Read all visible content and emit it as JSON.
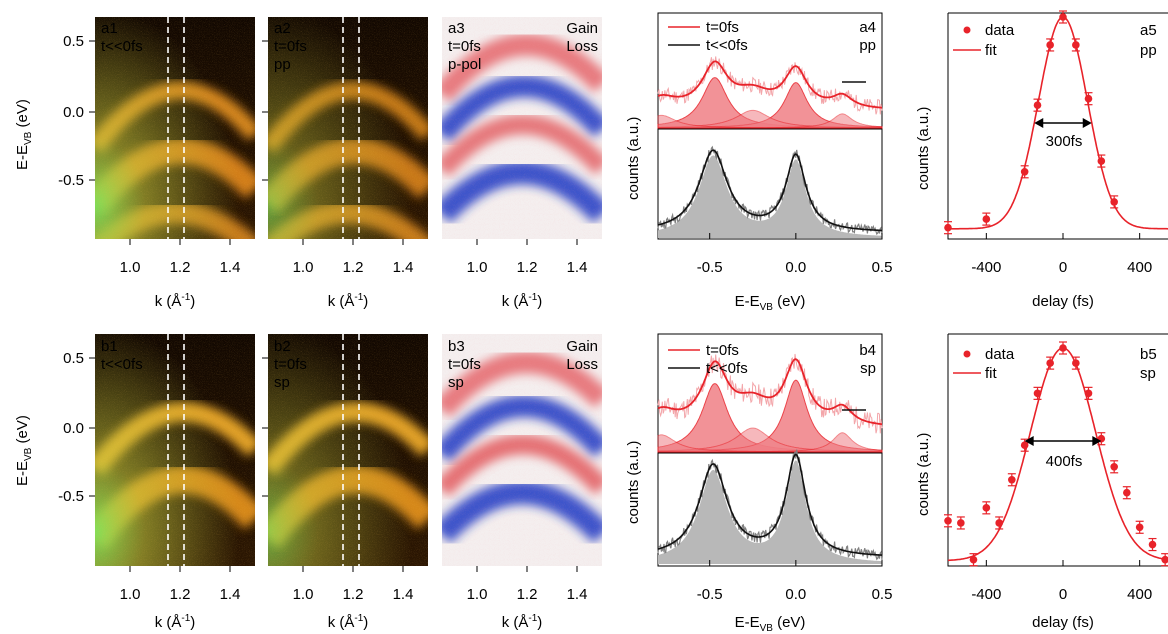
{
  "colors": {
    "red": "#e8232a",
    "black": "#111111",
    "blue": "#1530c8",
    "fillred": "#f07f86",
    "fillgray": "#b8b8b8"
  },
  "arpes_axes": {
    "ylabel": "E-E",
    "ylabel_sub": "VB",
    "ylabel_unit": " (eV)",
    "yticks": [
      "0.5",
      "0.0",
      "-0.5"
    ],
    "xticks": [
      "1.0",
      "1.2",
      "1.4"
    ],
    "xlabel": "k (Å",
    "xlabel_sup": "-1",
    "xlabel_end": ")"
  },
  "panels": {
    "a1": {
      "lines": [
        "a1",
        "t<<0fs"
      ]
    },
    "a2": {
      "lines": [
        "a2",
        "t=0fs",
        "pp"
      ]
    },
    "a3": {
      "lines": [
        "a3",
        "t=0fs",
        "p-pol"
      ],
      "gain": "Gain",
      "loss": "Loss"
    },
    "b1": {
      "lines": [
        "b1",
        "t<<0fs"
      ]
    },
    "b2": {
      "lines": [
        "b2",
        "t=0fs",
        "sp"
      ]
    },
    "b3": {
      "lines": [
        "b3",
        "t=0fs",
        "sp"
      ],
      "gain": "Gain",
      "loss": "Loss"
    }
  },
  "spectra_axes": {
    "ylabel": "counts (a.u.)",
    "xticks": [
      "-0.5",
      "0.0",
      "0.5"
    ],
    "xlabel": "E-E",
    "xlabel_sub": "VB",
    "xlabel_unit": " (eV)"
  },
  "a4": {
    "label": "a4",
    "pol": "pp",
    "legend": [
      "t=0fs",
      "t<<0fs"
    ]
  },
  "b4": {
    "label": "b4",
    "pol": "sp",
    "legend": [
      "t=0fs",
      "t<<0fs"
    ]
  },
  "delay_axes": {
    "ylabel": "counts (a.u.)",
    "xticks": [
      "-400",
      "0",
      "400"
    ],
    "xlabel": "delay (fs)"
  },
  "a5": {
    "label": "a5",
    "pol": "pp",
    "legend": [
      "data",
      "fit"
    ],
    "width_label": "300fs"
  },
  "b5": {
    "label": "b5",
    "pol": "sp",
    "legend": [
      "data",
      "fit"
    ],
    "width_label": "400fs"
  },
  "chart_data": [
    {
      "type": "line",
      "title": "a5",
      "xlabel": "delay (fs)",
      "ylabel": "counts (a.u.)",
      "xlim": [
        -600,
        600
      ],
      "series": [
        {
          "name": "data",
          "x": [
            -600,
            -400,
            -200,
            -133,
            -67,
            0,
            67,
            133,
            200,
            267
          ],
          "y": [
            0.02,
            0.06,
            0.28,
            0.59,
            0.87,
            1.0,
            0.87,
            0.62,
            0.33,
            0.14
          ]
        },
        {
          "name": "fit",
          "fwhm": 300
        }
      ]
    },
    {
      "type": "line",
      "title": "b5",
      "xlabel": "delay (fs)",
      "ylabel": "counts (a.u.)",
      "xlim": [
        -600,
        600
      ],
      "series": [
        {
          "name": "data",
          "x": [
            -600,
            -533,
            -467,
            -400,
            -333,
            -267,
            -200,
            -133,
            -67,
            0,
            67,
            133,
            200,
            267,
            333,
            400,
            467,
            533,
            600
          ],
          "y": [
            0.2,
            0.19,
            0.02,
            0.26,
            0.19,
            0.39,
            0.55,
            0.79,
            0.93,
            1.0,
            0.93,
            0.79,
            0.58,
            0.45,
            0.33,
            0.17,
            0.09,
            0.02,
            0.0
          ]
        },
        {
          "name": "fit",
          "fwhm": 400
        }
      ]
    },
    {
      "type": "line",
      "title": "a4",
      "xlabel": "E-EVB (eV)",
      "ylabel": "counts (a.u.)",
      "xticks": [
        -0.5,
        0.0,
        0.5
      ],
      "series": [
        {
          "name": "t=0fs"
        },
        {
          "name": "t<<0fs"
        }
      ]
    },
    {
      "type": "line",
      "title": "b4",
      "xlabel": "E-EVB (eV)",
      "ylabel": "counts (a.u.)",
      "xticks": [
        -0.5,
        0.0,
        0.5
      ],
      "series": [
        {
          "name": "t=0fs"
        },
        {
          "name": "t<<0fs"
        }
      ]
    }
  ]
}
